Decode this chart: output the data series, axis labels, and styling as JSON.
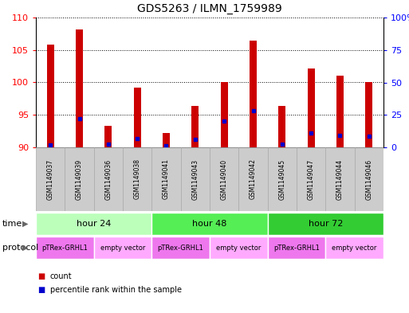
{
  "title": "GDS5263 / ILMN_1759989",
  "samples": [
    "GSM1149037",
    "GSM1149039",
    "GSM1149036",
    "GSM1149038",
    "GSM1149041",
    "GSM1149043",
    "GSM1149040",
    "GSM1149042",
    "GSM1149045",
    "GSM1149047",
    "GSM1149044",
    "GSM1149046"
  ],
  "count_values": [
    105.8,
    108.2,
    93.3,
    99.2,
    92.2,
    96.4,
    100.0,
    106.4,
    96.4,
    102.2,
    101.0,
    100.0
  ],
  "percentile_values": [
    2.0,
    22.0,
    2.5,
    7.0,
    1.5,
    6.0,
    20.0,
    28.0,
    2.5,
    11.0,
    9.0,
    8.5
  ],
  "y_min": 90,
  "y_max": 110,
  "y_ticks_left": [
    90,
    95,
    100,
    105,
    110
  ],
  "y_ticks_right": [
    0,
    25,
    50,
    75,
    100
  ],
  "bar_color": "#cc0000",
  "percentile_color": "#0000cc",
  "bar_width": 0.25,
  "time_groups": [
    {
      "label": "hour 24",
      "start": 0,
      "end": 4,
      "color": "#bbffbb"
    },
    {
      "label": "hour 48",
      "start": 4,
      "end": 8,
      "color": "#55ee55"
    },
    {
      "label": "hour 72",
      "start": 8,
      "end": 12,
      "color": "#33cc33"
    }
  ],
  "protocol_groups": [
    {
      "label": "pTRex-GRHL1",
      "start": 0,
      "end": 2,
      "color": "#ee77ee"
    },
    {
      "label": "empty vector",
      "start": 2,
      "end": 4,
      "color": "#ffaaff"
    },
    {
      "label": "pTRex-GRHL1",
      "start": 4,
      "end": 6,
      "color": "#ee77ee"
    },
    {
      "label": "empty vector",
      "start": 6,
      "end": 8,
      "color": "#ffaaff"
    },
    {
      "label": "pTRex-GRHL1",
      "start": 8,
      "end": 10,
      "color": "#ee77ee"
    },
    {
      "label": "empty vector",
      "start": 10,
      "end": 12,
      "color": "#ffaaff"
    }
  ],
  "legend_count_label": "count",
  "legend_percentile_label": "percentile rank within the sample",
  "time_label": "time",
  "protocol_label": "protocol",
  "sample_box_color": "#cccccc",
  "sample_box_edge": "#aaaaaa"
}
